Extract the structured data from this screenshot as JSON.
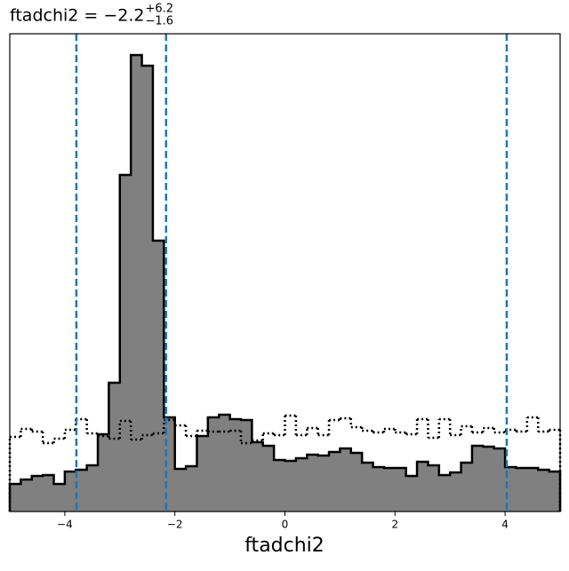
{
  "chart_data": {
    "type": "histogram",
    "title": {
      "text": "ftadchi2 = −2.2",
      "sup": "+6.2",
      "sub": "−1.6"
    },
    "x_label": "ftadchi2",
    "bins": [
      -5,
      -4.8,
      -4.6,
      -4.4,
      -4.2,
      -4,
      -3.8,
      -3.6,
      -3.4,
      -3.2,
      -3,
      -2.8,
      -2.6,
      -2.4,
      -2.2,
      -2,
      -1.8,
      -1.6,
      -1.4,
      -1.2,
      -1,
      -0.8,
      -0.6,
      -0.4,
      -0.2,
      0,
      0.2,
      0.4,
      0.6,
      0.8,
      1,
      1.2,
      1.4,
      1.6,
      1.8,
      2,
      2.2,
      2.4,
      2.6,
      2.8,
      3,
      3.2,
      3.4,
      3.6,
      3.8,
      4,
      4.2,
      4.4,
      4.6,
      4.8,
      5
    ],
    "series": [
      {
        "style": "filled",
        "color": "#808080",
        "values": [
          31,
          36,
          40,
          41,
          31,
          45,
          47,
          52,
          87,
          145,
          379,
          514,
          502,
          305,
          106,
          48,
          51,
          85,
          106,
          109,
          104,
          103,
          78,
          74,
          58,
          57,
          60,
          64,
          63,
          67,
          71,
          66,
          55,
          50,
          49,
          49,
          40,
          56,
          52,
          41,
          44,
          55,
          74,
          73,
          71,
          50,
          49,
          49,
          47,
          45
        ]
      },
      {
        "style": "dotted",
        "color": "#000000",
        "values": [
          84,
          93,
          90,
          77,
          82,
          92,
          104,
          88,
          85,
          82,
          102,
          81,
          86,
          88,
          103,
          97,
          85,
          91,
          90,
          90,
          91,
          77,
          80,
          88,
          86,
          108,
          86,
          94,
          86,
          103,
          105,
          95,
          91,
          89,
          93,
          89,
          87,
          104,
          83,
          104,
          86,
          96,
          89,
          94,
          89,
          92,
          90,
          106,
          90,
          92
        ]
      }
    ],
    "quantile_lines": {
      "color": "#1f77b4",
      "values": [
        -3.79,
        -2.16,
        4.03
      ]
    },
    "xlim": [
      -5,
      5
    ],
    "ylim": [
      0,
      538
    ],
    "xticks": [
      {
        "value": -4,
        "label": "−4"
      },
      {
        "value": -2,
        "label": "−2"
      },
      0,
      2,
      4
    ]
  }
}
